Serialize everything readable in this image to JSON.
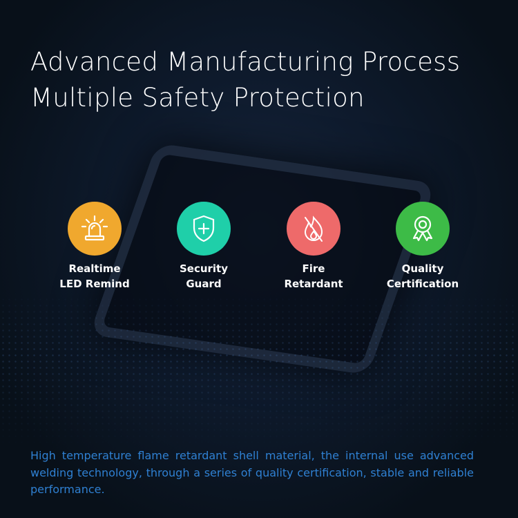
{
  "headline": {
    "line1": "Advanced Manufacturing Process",
    "line2": "Multiple Safety Protection"
  },
  "features": [
    {
      "icon": "siren-icon",
      "color": "#f0a82e",
      "line1": "Realtime",
      "line2": "LED Remind"
    },
    {
      "icon": "shield-plus-icon",
      "color": "#1fcfa9",
      "line1": "Security",
      "line2": "Guard"
    },
    {
      "icon": "no-fire-icon",
      "color": "#ee6a6a",
      "line1": "Fire",
      "line2": "Retardant"
    },
    {
      "icon": "award-ribbon-icon",
      "color": "#3dbb47",
      "line1": "Quality",
      "line2": "Certification"
    }
  ],
  "description": "High temperature flame retardant shell material, the internal use advanced welding technology, through a series of quality certification, stable and reliable performance."
}
